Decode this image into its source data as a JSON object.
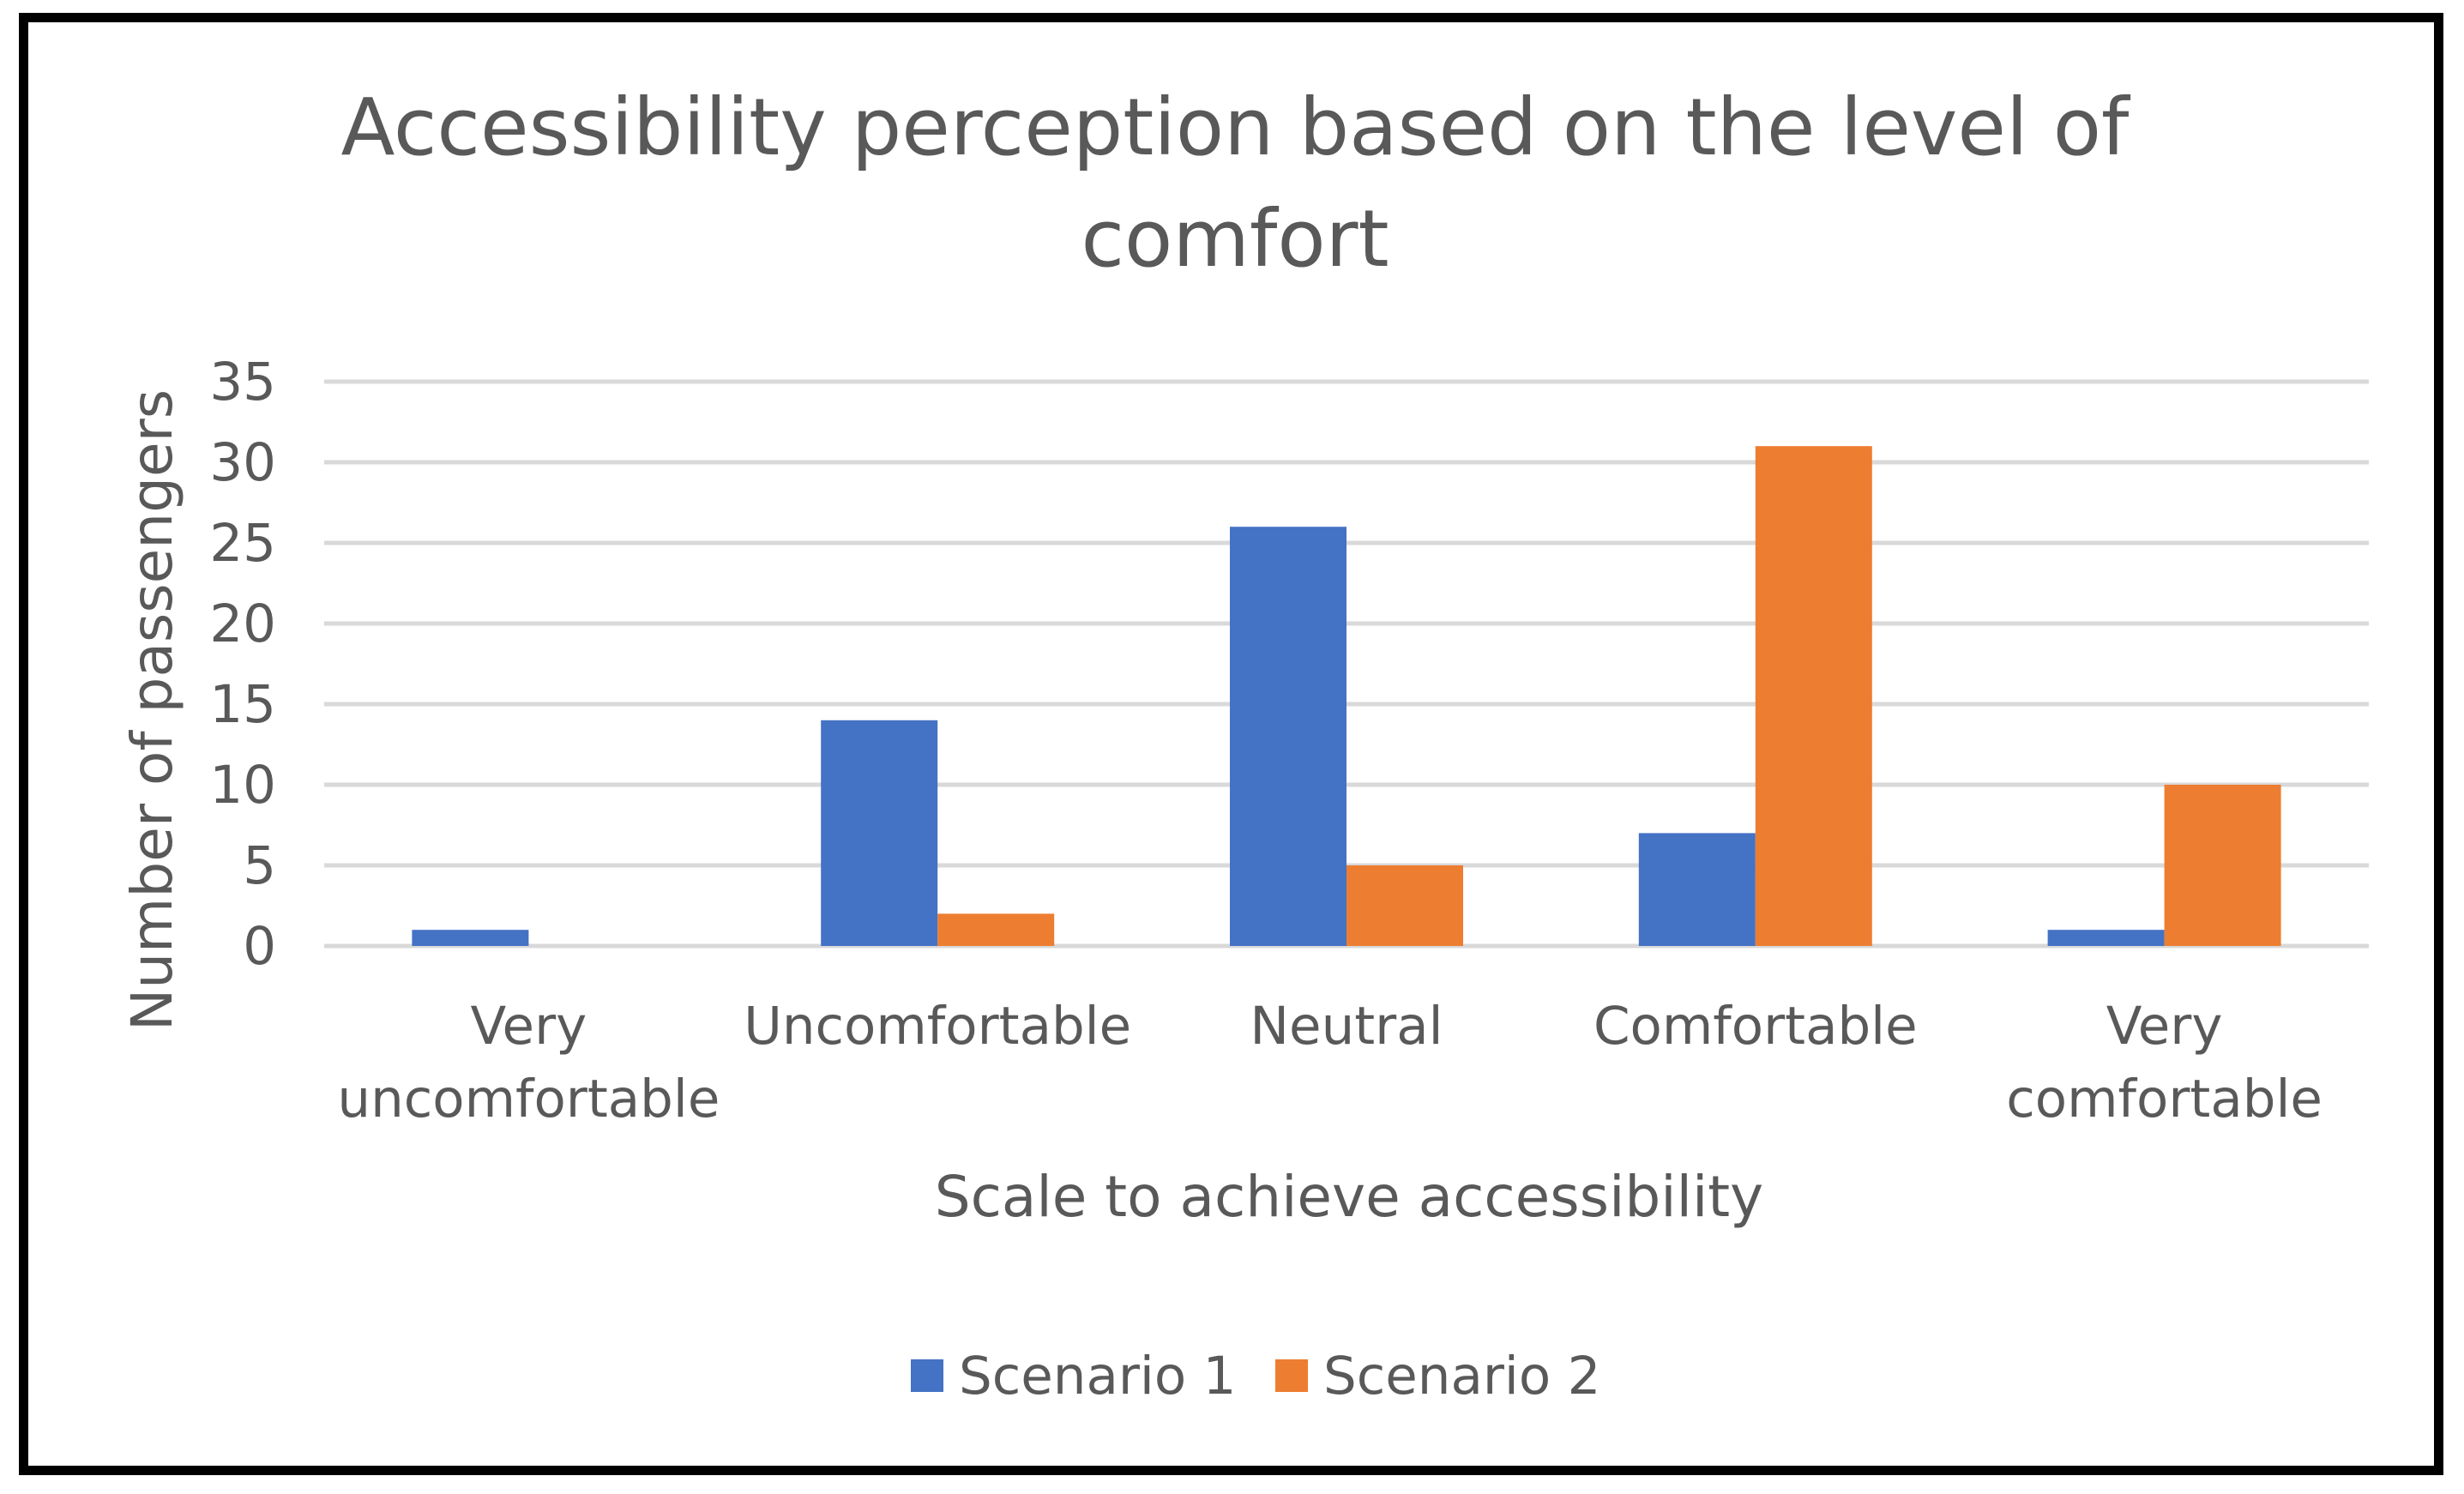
{
  "chart_data": {
    "type": "bar",
    "title": "Accessibility perception based on the level of comfort",
    "title_lines": [
      "Accessibility perception based on the level of",
      "comfort"
    ],
    "xlabel": "Scale to achieve accessibility",
    "ylabel": "Number of passengers",
    "ylim": [
      0,
      35
    ],
    "yticks": [
      0,
      5,
      10,
      15,
      20,
      25,
      30,
      35
    ],
    "grid": true,
    "legend_position": "bottom",
    "categories": [
      "Very uncomfortable",
      "Uncomfortable",
      "Neutral",
      "Comfortable",
      "Very comfortable"
    ],
    "category_label_lines": [
      [
        "Very",
        "uncomfortable"
      ],
      [
        "Uncomfortable"
      ],
      [
        "Neutral"
      ],
      [
        "Comfortable"
      ],
      [
        "Very",
        "comfortable"
      ]
    ],
    "series": [
      {
        "name": "Scenario 1",
        "color": "#4472C4",
        "values": [
          1,
          14,
          26,
          7,
          1
        ]
      },
      {
        "name": "Scenario 2",
        "color": "#ED7D31",
        "values": [
          0,
          2,
          5,
          31,
          10
        ]
      }
    ]
  },
  "colors": {
    "gridline": "#D9D9D9",
    "text": "#595959",
    "border": "#000000"
  }
}
